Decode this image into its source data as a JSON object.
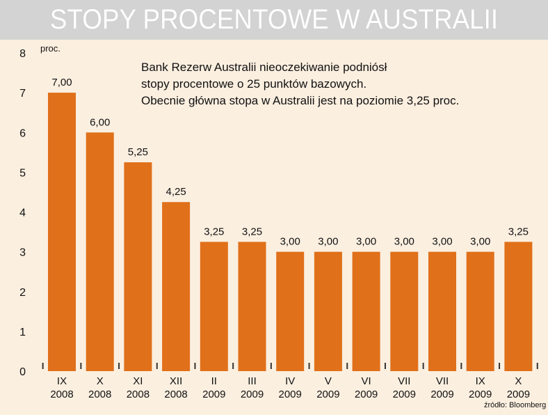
{
  "title": "STOPY PROCENTOWE W AUSTRALII",
  "unit_label": "proc.",
  "note": [
    "Bank Rezerw Australii nieoczekiwanie podniósł",
    "stopy procentowe o 25 punktów bazowych.",
    "Obecnie główna stopa w Australii jest na poziomie 3,25 proc."
  ],
  "source": "źródło: Bloomberg",
  "colors": {
    "bar": "#e0701a",
    "background": "#fbefe0",
    "title_bar": "#d3d3d3"
  },
  "chart_data": {
    "type": "bar",
    "categories": [
      [
        "IX",
        "2008"
      ],
      [
        "X",
        "2008"
      ],
      [
        "XI",
        "2008"
      ],
      [
        "XII",
        "2008"
      ],
      [
        "II",
        "2009"
      ],
      [
        "III",
        "2009"
      ],
      [
        "IV",
        "2009"
      ],
      [
        "V",
        "2009"
      ],
      [
        "VI",
        "2009"
      ],
      [
        "VII",
        "2009"
      ],
      [
        "VII",
        "2009"
      ],
      [
        "IX",
        "2009"
      ],
      [
        "X",
        "2009"
      ]
    ],
    "values": [
      7.0,
      6.0,
      5.25,
      4.25,
      3.25,
      3.25,
      3.0,
      3.0,
      3.0,
      3.0,
      3.0,
      3.0,
      3.25
    ],
    "value_labels": [
      "7,00",
      "6,00",
      "5,25",
      "4,25",
      "3,25",
      "3,25",
      "3,00",
      "3,00",
      "3,00",
      "3,00",
      "3,00",
      "3,00",
      "3,25"
    ],
    "yticks": [
      "0",
      "1",
      "2",
      "3",
      "4",
      "5",
      "6",
      "7",
      "8"
    ],
    "ylim": [
      0,
      8
    ],
    "grid": false
  }
}
